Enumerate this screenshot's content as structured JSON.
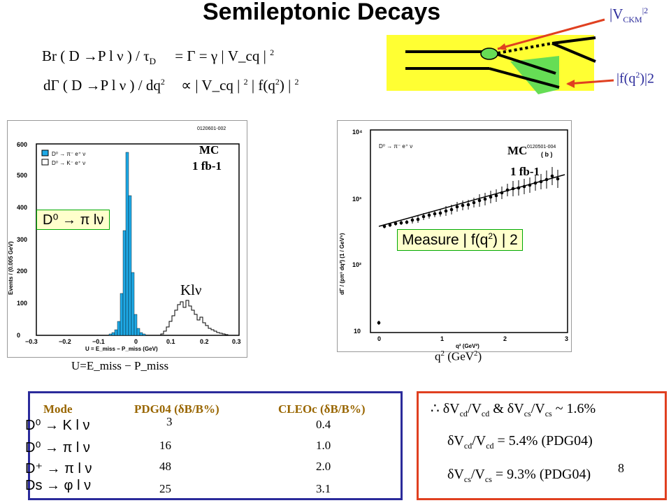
{
  "title": "Semileptonic Decays",
  "formulas": {
    "line1_lhs": "Br ( D →P l ν ) / τ",
    "line1_sub": "D",
    "line1_rhs": "= Γ = γ | V_cq | ",
    "line1_exp": "2",
    "line2_lhs": "dΓ ( D →P l ν ) / dq",
    "line2_sup": "2",
    "line2_rhs": "∝ | V_cq | ",
    "line2_exp1": "2",
    "line2_mid": " | f(q",
    "line2_sup2": "2",
    "line2_end": ") | ",
    "line2_exp2": "2"
  },
  "diagram": {
    "ckm_label": "|V",
    "ckm_sub": "CKM",
    "ckm_exp": "|2",
    "form_factor_label": "|f(q",
    "form_factor_sup": "2",
    "form_factor_end": ")|2"
  },
  "left_plot": {
    "id": "0120601-002",
    "ylabel": "Events / (0.005 GeV)",
    "xlabel": "U = E_miss − P_miss (GeV)",
    "yticks": [
      "0",
      "100",
      "200",
      "300",
      "400",
      "500",
      "600"
    ],
    "xticks": [
      "−0.3",
      "−0.2",
      "−0.1",
      "0",
      "0.1",
      "0.2",
      "0.3"
    ],
    "legend1": "D⁰ → π⁻ e⁺ ν",
    "legend2": "D⁰ → K⁻ e⁺ ν",
    "mc": "MC",
    "lumi": "1 fb-1",
    "decay_box": "D⁰ → π lν",
    "kl_label": "Klν",
    "caption": "U=E_miss − P_miss"
  },
  "right_plot": {
    "id": "0120501-004",
    "panel": "( b )",
    "legend": "D⁰ → π⁻ e⁺ ν",
    "ylabel": "dΓ / (pπ³ dq²) (1 / GeV⁵)",
    "xlabel": "q² (GeV²)",
    "yticks": [
      "10",
      "10²",
      "10³",
      "10⁴"
    ],
    "xticks": [
      "0",
      "1",
      "2",
      "3"
    ],
    "mc": "MC",
    "lumi": "1 fb-1",
    "measure_box": "Measure | f(q",
    "measure_sup": "2",
    "measure_end": ") | 2",
    "caption": "q",
    "caption_sup": "2",
    "caption_end": " (GeV",
    "caption_sup2": "2",
    "caption_close": ")"
  },
  "table": {
    "headers": [
      "Mode",
      "PDG04 (δB/B%)",
      "CLEOc (δB/B%)"
    ],
    "rows": [
      {
        "mode": "D⁰ → K l ν",
        "pdg": "3",
        "cleo": "0.4"
      },
      {
        "mode": "D⁰ → π l ν",
        "pdg": "16",
        "cleo": "1.0"
      },
      {
        "mode": "D⁺ → π l ν",
        "pdg": "48",
        "cleo": "2.0"
      },
      {
        "mode": "Ds → φ l ν",
        "pdg": "25",
        "cleo": "3.1"
      }
    ]
  },
  "results": {
    "line1": "∴ δV",
    "line1_s1": "cd",
    "line1_a": "/V",
    "line1_s2": "cd",
    "line1_b": " & δV",
    "line1_s3": "cs",
    "line1_c": "/V",
    "line1_s4": "cs",
    "line1_d": " ~ 1.6%",
    "line2": "δV",
    "line2_s1": "cd",
    "line2_a": "/V",
    "line2_s2": "cd",
    "line2_b": " = 5.4% (PDG04)",
    "line3": "δV",
    "line3_s1": "cs",
    "line3_a": "/V",
    "line3_s2": "cs",
    "line3_b": " = 9.3% (PDG04)"
  },
  "page_number": "8",
  "colors": {
    "histogram_fill": "#1ea9e6",
    "yellow": "#ffff33",
    "green": "#66dd55",
    "arrow_red": "#e04020",
    "table_border": "#2b2b9b",
    "table_header": "#996600"
  }
}
